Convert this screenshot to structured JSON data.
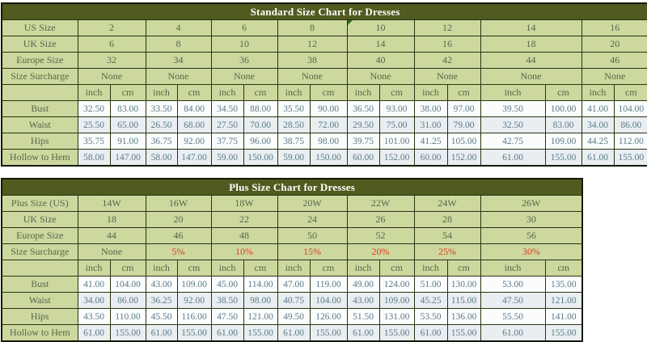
{
  "colors": {
    "title_bar_bg": "#4f5b1f",
    "title_text": "#ffffff",
    "header_cell_bg": "#ccd89e",
    "header_text": "#57674a",
    "data_cell_bg": "#fbfcfc",
    "data_cell_alt_bg": "#e9eef1",
    "data_text": "#5a7a8a",
    "surcharge_red": "#e03a24",
    "grid_border": "#2a3311",
    "outer_border": "#141a04",
    "note_marker_green": "#2e6b21"
  },
  "chart_data": [
    {
      "type": "table",
      "title": "Standard Size Chart for Dresses",
      "unit_headers": [
        "inch",
        "cm"
      ],
      "header_rows": [
        {
          "label": "US Size",
          "values": [
            "2",
            "4",
            "6",
            "8",
            "10",
            "12",
            "14",
            "16"
          ]
        },
        {
          "label": "UK Size",
          "values": [
            "6",
            "8",
            "10",
            "12",
            "14",
            "16",
            "18",
            "20"
          ]
        },
        {
          "label": "Europe Size",
          "values": [
            "32",
            "34",
            "36",
            "38",
            "40",
            "42",
            "44",
            "46"
          ]
        },
        {
          "label": "Size Surcharge",
          "values": [
            "None",
            "None",
            "None",
            "None",
            "None",
            "None",
            "None",
            "None"
          ]
        }
      ],
      "measurement_rows": [
        {
          "label": "Bust",
          "inch_cm": [
            [
              "32.50",
              "83.00"
            ],
            [
              "33.50",
              "84.00"
            ],
            [
              "34.50",
              "88.00"
            ],
            [
              "35.50",
              "90.00"
            ],
            [
              "36.50",
              "93.00"
            ],
            [
              "38.00",
              "97.00"
            ],
            [
              "39.50",
              "100.00"
            ],
            [
              "41.00",
              "104.00"
            ]
          ]
        },
        {
          "label": "Waist",
          "inch_cm": [
            [
              "25.50",
              "65.00"
            ],
            [
              "26.50",
              "68.00"
            ],
            [
              "27.50",
              "70.00"
            ],
            [
              "28.50",
              "72.00"
            ],
            [
              "29.50",
              "75.00"
            ],
            [
              "31.00",
              "79.00"
            ],
            [
              "32.50",
              "83.00"
            ],
            [
              "34.00",
              "86.00"
            ]
          ]
        },
        {
          "label": "Hips",
          "inch_cm": [
            [
              "35.75",
              "91.00"
            ],
            [
              "36.75",
              "92.00"
            ],
            [
              "37.75",
              "96.00"
            ],
            [
              "38.75",
              "98.00"
            ],
            [
              "39.75",
              "101.00"
            ],
            [
              "41.25",
              "105.00"
            ],
            [
              "42.75",
              "109.00"
            ],
            [
              "44.25",
              "112.00"
            ]
          ]
        },
        {
          "label": "Hollow to Hem",
          "inch_cm": [
            [
              "58.00",
              "147.00"
            ],
            [
              "58.00",
              "147.00"
            ],
            [
              "59.00",
              "150.00"
            ],
            [
              "59.00",
              "150.00"
            ],
            [
              "60.00",
              "152.00"
            ],
            [
              "60.00",
              "152.00"
            ],
            [
              "61.00",
              "155.00"
            ],
            [
              "61.00",
              "155.00"
            ]
          ]
        }
      ],
      "note_marker_cell": {
        "row_label": "US Size",
        "column_index": 4
      }
    },
    {
      "type": "table",
      "title": "Plus Size Chart for Dresses",
      "unit_headers": [
        "inch",
        "cm"
      ],
      "header_rows": [
        {
          "label": "Plus Size (US)",
          "values": [
            "14W",
            "16W",
            "18W",
            "20W",
            "22W",
            "24W",
            "26W"
          ]
        },
        {
          "label": "UK Size",
          "values": [
            "18",
            "20",
            "22",
            "24",
            "26",
            "28",
            "30"
          ]
        },
        {
          "label": "Europe Size",
          "values": [
            "44",
            "46",
            "48",
            "50",
            "52",
            "54",
            "56"
          ]
        },
        {
          "label": "Size Surcharge",
          "values": [
            "None",
            "5%",
            "10%",
            "15%",
            "20%",
            "25%",
            "30%"
          ]
        }
      ],
      "measurement_rows": [
        {
          "label": "Bust",
          "inch_cm": [
            [
              "41.00",
              "104.00"
            ],
            [
              "43.00",
              "109.00"
            ],
            [
              "45.00",
              "114.00"
            ],
            [
              "47.00",
              "119.00"
            ],
            [
              "49.00",
              "124.00"
            ],
            [
              "51.00",
              "130.00"
            ],
            [
              "53.00",
              "135.00"
            ]
          ]
        },
        {
          "label": "Waist",
          "inch_cm": [
            [
              "34.00",
              "86.00"
            ],
            [
              "36.25",
              "92.00"
            ],
            [
              "38.50",
              "98.00"
            ],
            [
              "40.75",
              "104.00"
            ],
            [
              "43.00",
              "109.00"
            ],
            [
              "45.25",
              "115.00"
            ],
            [
              "47.50",
              "121.00"
            ]
          ]
        },
        {
          "label": "Hips",
          "inch_cm": [
            [
              "43.50",
              "110.00"
            ],
            [
              "45.50",
              "116.00"
            ],
            [
              "47.50",
              "121.00"
            ],
            [
              "49.50",
              "126.00"
            ],
            [
              "51.50",
              "131.00"
            ],
            [
              "53.50",
              "136.00"
            ],
            [
              "55.50",
              "141.00"
            ]
          ]
        },
        {
          "label": "Hollow to Hem",
          "inch_cm": [
            [
              "61.00",
              "155.00"
            ],
            [
              "61.00",
              "155.00"
            ],
            [
              "61.00",
              "155.00"
            ],
            [
              "61.00",
              "155.00"
            ],
            [
              "61.00",
              "155.00"
            ],
            [
              "61.00",
              "155.00"
            ],
            [
              "61.00",
              "155.00"
            ]
          ]
        }
      ]
    }
  ]
}
